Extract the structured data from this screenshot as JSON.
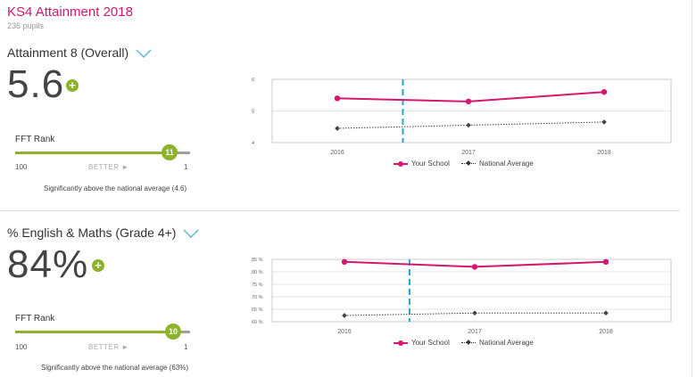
{
  "header": {
    "title": "KS4 Attainment 2018",
    "subtitle": "236 pupils"
  },
  "colors": {
    "brand": "#d6176f",
    "positive": "#8db32b",
    "dashed_marker": "#2aa7d8"
  },
  "sections": [
    {
      "title": "Attainment 8 (Overall)",
      "value": "5.6",
      "indicator": "plus-icon",
      "fft_rank": {
        "label": "FFT Rank",
        "value": "11",
        "fraction_from_left": 0.88,
        "left_label": "100",
        "better_label": "BETTER ►",
        "right_label": "1"
      },
      "note": "Significantly above the national average (4.6)",
      "legend": {
        "school": "Your School",
        "national": "National Average"
      }
    },
    {
      "title": "% English & Maths (Grade 4+)",
      "value": "84%",
      "indicator": "plus-icon",
      "fft_rank": {
        "label": "FFT Rank",
        "value": "10",
        "fraction_from_left": 0.9,
        "left_label": "100",
        "better_label": "BETTER ►",
        "right_label": "1"
      },
      "note": "Significantly above the national average (63%)",
      "legend": {
        "school": "Your School",
        "national": "National Average"
      }
    }
  ],
  "chart_data": [
    {
      "type": "line",
      "x": [
        "2016",
        "2017",
        "2018"
      ],
      "ylim": [
        4,
        6
      ],
      "yticks": [
        "4",
        "5",
        "6"
      ],
      "marker_between": [
        "2016",
        "2017"
      ],
      "series": [
        {
          "name": "Your School",
          "values": [
            5.4,
            5.3,
            5.6
          ]
        },
        {
          "name": "National Average",
          "values": [
            4.45,
            4.55,
            4.65
          ]
        }
      ]
    },
    {
      "type": "line",
      "x": [
        "2016",
        "2017",
        "2018"
      ],
      "ylim": [
        60,
        85
      ],
      "yticks": [
        "60 %",
        "65 %",
        "70 %",
        "75 %",
        "80 %",
        "85 %"
      ],
      "marker_between": [
        "2016",
        "2017"
      ],
      "series": [
        {
          "name": "Your School",
          "values": [
            84,
            82,
            84
          ]
        },
        {
          "name": "National Average",
          "values": [
            62.5,
            63.5,
            63.5
          ]
        }
      ]
    }
  ]
}
